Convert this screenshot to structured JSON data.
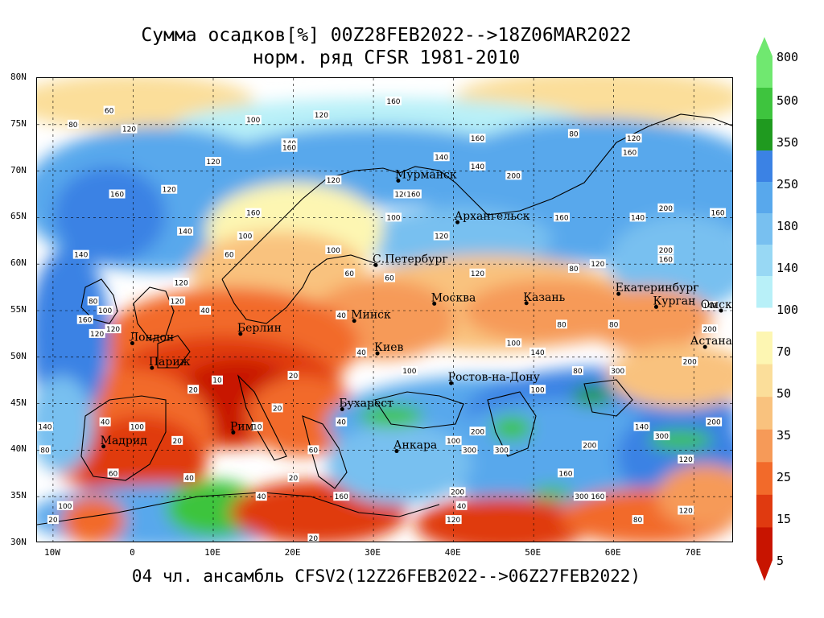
{
  "title": {
    "line1": "Сумма осадков[%] 00Z28FEB2022-->18Z06MAR2022",
    "line2": "норм. ряд CFSR 1981-2010"
  },
  "footer": "04 чл. ансамбль CFSV2(12Z26FEB2022-->06Z27FEB2022)",
  "lat_labels": [
    "80N",
    "75N",
    "70N",
    "65N",
    "60N",
    "55N",
    "50N",
    "45N",
    "40N",
    "35N",
    "30N"
  ],
  "lon_labels": [
    "10W",
    "0",
    "10E",
    "20E",
    "30E",
    "40E",
    "50E",
    "60E",
    "70E"
  ],
  "colorbar": {
    "labels": [
      "800",
      "500",
      "350",
      "250",
      "180",
      "140",
      "100",
      "70",
      "50",
      "35",
      "25",
      "15",
      "5"
    ],
    "upper_colors": [
      "#b8f0f8",
      "#98d8f4",
      "#78c0f0",
      "#58a8ec",
      "#3b82e4",
      "#1f9a1f",
      "#3ec43e",
      "#70e870"
    ],
    "lower_colors": [
      "#c81400",
      "#e03a10",
      "#f26a2a",
      "#f69a58",
      "#f9c27e",
      "#fbde9a",
      "#fdf6b2"
    ]
  },
  "cities": [
    {
      "name": "Мурманск",
      "lon": 33.1,
      "lat": 68.97
    },
    {
      "name": "Архангельск",
      "lon": 40.5,
      "lat": 64.5
    },
    {
      "name": "С.Петербург",
      "lon": 30.3,
      "lat": 59.9
    },
    {
      "name": "Москва",
      "lon": 37.6,
      "lat": 55.75
    },
    {
      "name": "Казань",
      "lon": 49.1,
      "lat": 55.8
    },
    {
      "name": "Екатеринбург",
      "lon": 60.6,
      "lat": 56.8
    },
    {
      "name": "Курган",
      "lon": 65.3,
      "lat": 55.4
    },
    {
      "name": "Омск",
      "lon": 73.4,
      "lat": 55.0
    },
    {
      "name": "Астана",
      "lon": 71.4,
      "lat": 51.1
    },
    {
      "name": "Минск",
      "lon": 27.6,
      "lat": 53.9
    },
    {
      "name": "Киев",
      "lon": 30.5,
      "lat": 50.4
    },
    {
      "name": "Берлин",
      "lon": 13.4,
      "lat": 52.5
    },
    {
      "name": "Лондон",
      "lon": -0.1,
      "lat": 51.5
    },
    {
      "name": "Париж",
      "lon": 2.35,
      "lat": 48.85
    },
    {
      "name": "Мадрид",
      "lon": -3.7,
      "lat": 40.4
    },
    {
      "name": "Рим",
      "lon": 12.5,
      "lat": 41.9
    },
    {
      "name": "Бухарест",
      "lon": 26.1,
      "lat": 44.4
    },
    {
      "name": "Ростов-на-Дону",
      "lon": 39.7,
      "lat": 47.2
    },
    {
      "name": "Анкара",
      "lon": 32.9,
      "lat": 39.9
    }
  ],
  "contour_values": [
    {
      "v": "60",
      "lon": -3,
      "lat": 76.5
    },
    {
      "v": "80",
      "lon": -7.5,
      "lat": 75
    },
    {
      "v": "120",
      "lon": -0.5,
      "lat": 74.5
    },
    {
      "v": "100",
      "lon": 15,
      "lat": 75.5
    },
    {
      "v": "120",
      "lon": 23.5,
      "lat": 76
    },
    {
      "v": "160",
      "lon": 32.5,
      "lat": 77.5
    },
    {
      "v": "140",
      "lon": 19.5,
      "lat": 73
    },
    {
      "v": "160",
      "lon": 19.5,
      "lat": 72.5
    },
    {
      "v": "120",
      "lon": 10,
      "lat": 71
    },
    {
      "v": "160",
      "lon": -2,
      "lat": 67.5
    },
    {
      "v": "120",
      "lon": 4.5,
      "lat": 68
    },
    {
      "v": "140",
      "lon": 6.5,
      "lat": 63.5
    },
    {
      "v": "160",
      "lon": 15,
      "lat": 65.5
    },
    {
      "v": "100",
      "lon": 14,
      "lat": 63
    },
    {
      "v": "140",
      "lon": -6.5,
      "lat": 61
    },
    {
      "v": "120",
      "lon": 6,
      "lat": 58
    },
    {
      "v": "60",
      "lon": 12,
      "lat": 61
    },
    {
      "v": "100",
      "lon": 25,
      "lat": 61.5
    },
    {
      "v": "120",
      "lon": 25,
      "lat": 69
    },
    {
      "v": "120",
      "lon": 33.5,
      "lat": 67.5
    },
    {
      "v": "160",
      "lon": 35,
      "lat": 67.5
    },
    {
      "v": "100",
      "lon": 32.5,
      "lat": 65
    },
    {
      "v": "140",
      "lon": 38.5,
      "lat": 71.5
    },
    {
      "v": "160",
      "lon": 43,
      "lat": 73.5
    },
    {
      "v": "140",
      "lon": 43,
      "lat": 70.5
    },
    {
      "v": "200",
      "lon": 47.5,
      "lat": 69.5
    },
    {
      "v": "160",
      "lon": 53.5,
      "lat": 65
    },
    {
      "v": "140",
      "lon": 63,
      "lat": 65
    },
    {
      "v": "200",
      "lon": 66.5,
      "lat": 66
    },
    {
      "v": "160",
      "lon": 62,
      "lat": 72
    },
    {
      "v": "80",
      "lon": 55,
      "lat": 74
    },
    {
      "v": "120",
      "lon": 62.5,
      "lat": 73.5
    },
    {
      "v": "120",
      "lon": 58,
      "lat": 60
    },
    {
      "v": "200",
      "lon": 66.5,
      "lat": 61.5
    },
    {
      "v": "160",
      "lon": 66.5,
      "lat": 60.5
    },
    {
      "v": "160",
      "lon": 73,
      "lat": 65.5
    },
    {
      "v": "120",
      "lon": 38.5,
      "lat": 63
    },
    {
      "v": "120",
      "lon": 43,
      "lat": 59
    },
    {
      "v": "80",
      "lon": 55,
      "lat": 59.5
    },
    {
      "v": "60",
      "lon": 32,
      "lat": 58.5
    },
    {
      "v": "60",
      "lon": 27,
      "lat": 59
    },
    {
      "v": "40",
      "lon": 26,
      "lat": 54.5
    },
    {
      "v": "40",
      "lon": 28.5,
      "lat": 50.5
    },
    {
      "v": "80",
      "lon": 53.5,
      "lat": 53.5
    },
    {
      "v": "80",
      "lon": 60,
      "lat": 53.5
    },
    {
      "v": "140",
      "lon": 72,
      "lat": 55.5
    },
    {
      "v": "200",
      "lon": 72,
      "lat": 53
    },
    {
      "v": "200",
      "lon": 69.5,
      "lat": 49.5
    },
    {
      "v": "100",
      "lon": 47.5,
      "lat": 51.5
    },
    {
      "v": "140",
      "lon": 50.5,
      "lat": 50.5
    },
    {
      "v": "80",
      "lon": 55.5,
      "lat": 48.5
    },
    {
      "v": "300",
      "lon": 60.5,
      "lat": 48.5
    },
    {
      "v": "100",
      "lon": 34.5,
      "lat": 48.5
    },
    {
      "v": "100",
      "lon": 50.5,
      "lat": 46.5
    },
    {
      "v": "200",
      "lon": 43,
      "lat": 42
    },
    {
      "v": "300",
      "lon": 46,
      "lat": 40
    },
    {
      "v": "300",
      "lon": 42,
      "lat": 40
    },
    {
      "v": "100",
      "lon": 40,
      "lat": 41
    },
    {
      "v": "200",
      "lon": 40.5,
      "lat": 35.5
    },
    {
      "v": "120",
      "lon": 40,
      "lat": 32.5
    },
    {
      "v": "160",
      "lon": 54,
      "lat": 37.5
    },
    {
      "v": "300",
      "lon": 56,
      "lat": 35
    },
    {
      "v": "160",
      "lon": 58,
      "lat": 35
    },
    {
      "v": "200",
      "lon": 57,
      "lat": 40.5
    },
    {
      "v": "140",
      "lon": 63.5,
      "lat": 42.5
    },
    {
      "v": "300",
      "lon": 66,
      "lat": 41.5
    },
    {
      "v": "120",
      "lon": 69,
      "lat": 39
    },
    {
      "v": "80",
      "lon": 63,
      "lat": 32.5
    },
    {
      "v": "120",
      "lon": 69,
      "lat": 33.5
    },
    {
      "v": "200",
      "lon": 72.5,
      "lat": 43
    },
    {
      "v": "40",
      "lon": 41,
      "lat": 34
    },
    {
      "v": "160",
      "lon": 26,
      "lat": 35
    },
    {
      "v": "40",
      "lon": 16,
      "lat": 35
    },
    {
      "v": "20",
      "lon": 20,
      "lat": 37
    },
    {
      "v": "20",
      "lon": 22.5,
      "lat": 30.5
    },
    {
      "v": "100",
      "lon": -8.5,
      "lat": 34
    },
    {
      "v": "20",
      "lon": -10,
      "lat": 32.5
    },
    {
      "v": "60",
      "lon": -2.5,
      "lat": 37.5
    },
    {
      "v": "20",
      "lon": 5.5,
      "lat": 41
    },
    {
      "v": "40",
      "lon": 7,
      "lat": 37
    },
    {
      "v": "40",
      "lon": -3.5,
      "lat": 43
    },
    {
      "v": "80",
      "lon": -11,
      "lat": 40
    },
    {
      "v": "140",
      "lon": -11,
      "lat": 42.5
    },
    {
      "v": "100",
      "lon": 0.5,
      "lat": 42.5
    },
    {
      "v": "20",
      "lon": 7.5,
      "lat": 46.5
    },
    {
      "v": "10",
      "lon": 10.5,
      "lat": 47.5
    },
    {
      "v": "10",
      "lon": 15.5,
      "lat": 42.5
    },
    {
      "v": "20",
      "lon": 18,
      "lat": 44.5
    },
    {
      "v": "20",
      "lon": 20,
      "lat": 48
    },
    {
      "v": "60",
      "lon": 22.5,
      "lat": 40
    },
    {
      "v": "40",
      "lon": 26,
      "lat": 43
    },
    {
      "v": "160",
      "lon": -6,
      "lat": 54
    },
    {
      "v": "120",
      "lon": -2.5,
      "lat": 53
    },
    {
      "v": "120",
      "lon": -4.5,
      "lat": 52.5
    },
    {
      "v": "100",
      "lon": -3.5,
      "lat": 55
    },
    {
      "v": "80",
      "lon": -5,
      "lat": 56
    },
    {
      "v": "40",
      "lon": 9,
      "lat": 55
    },
    {
      "v": "120",
      "lon": 5.5,
      "lat": 56
    }
  ],
  "map_extent": {
    "lon_min": -12,
    "lon_max": 75,
    "lat_min": 30,
    "lat_max": 80
  }
}
